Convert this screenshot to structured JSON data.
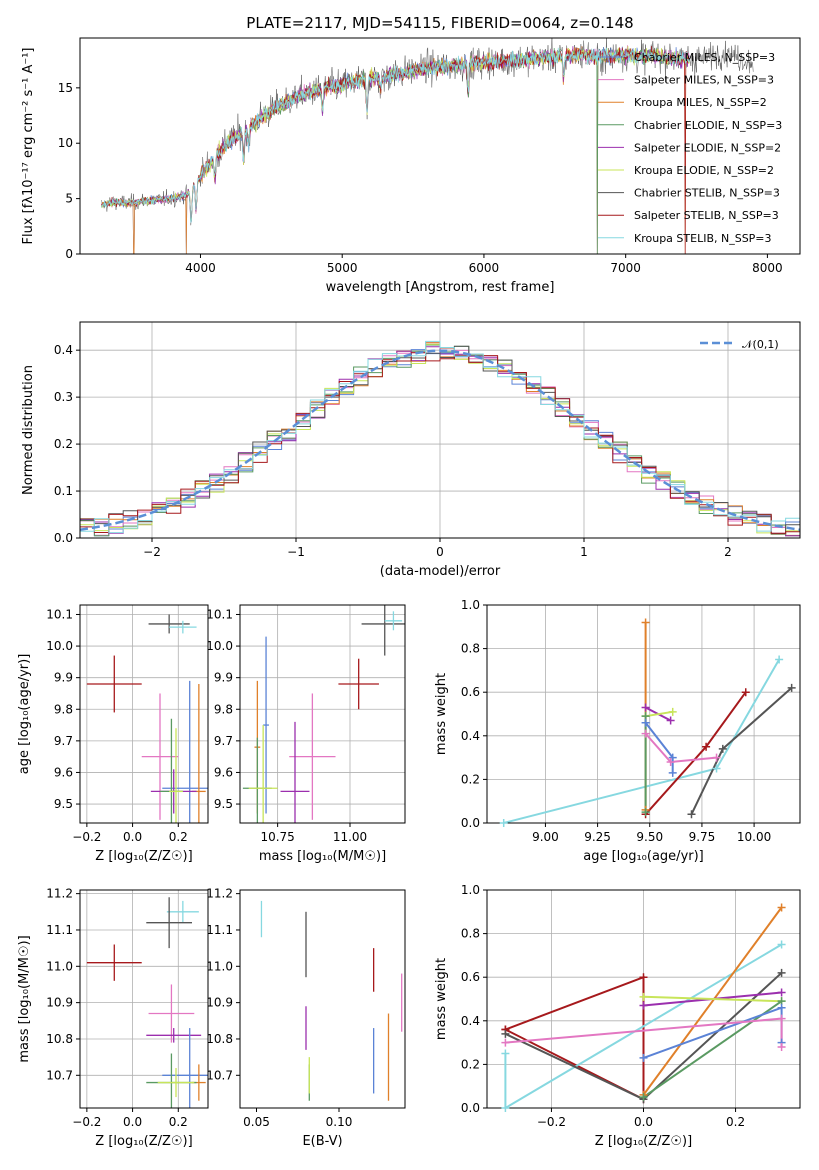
{
  "figure_title": "PLATE=2117, MJD=54115, FIBERID=0064, z=0.148",
  "colors": {
    "Chabrier MILES": "#5b83d6",
    "Salpeter MILES": "#e377c2",
    "Kroupa MILES": "#e0802a",
    "Chabrier ELODIE": "#5a9a62",
    "Salpeter ELODIE": "#9b2fae",
    "Kroupa ELODIE": "#c8e55a",
    "Chabrier STELIB": "#555555",
    "Salpeter STELIB": "#a6191c",
    "Kroupa STELIB": "#86d8e0"
  },
  "chart_data": [
    {
      "id": "spectrum",
      "type": "line",
      "xlabel": "wavelength [Angstrom, rest frame]",
      "ylabel": "Flux [fλ10⁻¹⁷ erg cm⁻² s⁻¹ A⁻¹]",
      "xlim": [
        3150,
        8230
      ],
      "ylim": [
        0,
        19.5
      ],
      "xticks": [
        4000,
        5000,
        6000,
        7000,
        8000
      ],
      "yticks": [
        0,
        5,
        10,
        15
      ],
      "grid": false,
      "legend_position": "upper right",
      "continuum": [
        [
          3300,
          4.4
        ],
        [
          3400,
          4.7
        ],
        [
          3500,
          4.6
        ],
        [
          3600,
          4.8
        ],
        [
          3700,
          4.9
        ],
        [
          3800,
          5.0
        ],
        [
          3900,
          5.3
        ],
        [
          4000,
          7.0
        ],
        [
          4100,
          8.8
        ],
        [
          4200,
          10.2
        ],
        [
          4300,
          11.0
        ],
        [
          4400,
          12.0
        ],
        [
          4500,
          13.0
        ],
        [
          4600,
          13.7
        ],
        [
          4700,
          14.3
        ],
        [
          4800,
          14.7
        ],
        [
          4900,
          15.1
        ],
        [
          5000,
          15.3
        ],
        [
          5100,
          15.6
        ],
        [
          5200,
          15.9
        ],
        [
          5300,
          16.0
        ],
        [
          5400,
          16.3
        ],
        [
          5500,
          16.6
        ],
        [
          5600,
          16.8
        ],
        [
          5700,
          16.9
        ],
        [
          5800,
          17.0
        ],
        [
          5900,
          17.2
        ],
        [
          6000,
          17.3
        ],
        [
          6100,
          17.4
        ],
        [
          6200,
          17.5
        ],
        [
          6300,
          17.6
        ],
        [
          6400,
          17.7
        ],
        [
          6500,
          17.8
        ],
        [
          6600,
          17.9
        ],
        [
          6700,
          18.0
        ],
        [
          6800,
          17.8
        ],
        [
          6900,
          17.9
        ],
        [
          7000,
          18.0
        ],
        [
          7100,
          17.8
        ],
        [
          7200,
          17.9
        ],
        [
          7300,
          17.7
        ],
        [
          7400,
          17.6
        ],
        [
          7500,
          17.6
        ]
      ],
      "observed_extension": [
        [
          7250,
          18.8
        ],
        [
          7400,
          18.3
        ],
        [
          7550,
          17.6
        ],
        [
          7700,
          18.2
        ],
        [
          7850,
          17.4
        ]
      ],
      "absorption_lines": [
        [
          3934,
          3.0
        ],
        [
          3969,
          2.5
        ],
        [
          4102,
          2.0
        ],
        [
          4304,
          2.5
        ],
        [
          4340,
          1.5
        ],
        [
          4861,
          2.0
        ],
        [
          5175,
          3.0
        ],
        [
          5270,
          1.2
        ],
        [
          5890,
          2.5
        ],
        [
          6563,
          2.0
        ]
      ],
      "dropouts": [
        {
          "series": "Chabrier MILES",
          "x": 3530
        },
        {
          "series": "Kroupa MILES",
          "x": 3530
        },
        {
          "series": "Chabrier MILES",
          "x": 3900
        },
        {
          "series": "Kroupa MILES",
          "x": 3900
        },
        {
          "series": "Chabrier MILES",
          "x": 6800
        },
        {
          "series": "Kroupa MILES",
          "x": 6800
        },
        {
          "series": "Chabrier ELODIE",
          "x": 6800
        },
        {
          "series": "Kroupa MILES",
          "x": 7420
        },
        {
          "series": "Salpeter STELIB",
          "x": 7420
        }
      ],
      "series": [
        {
          "name": "Chabrier MILES, N_SSP=3"
        },
        {
          "name": "Salpeter MILES, N_SSP=3"
        },
        {
          "name": "Kroupa MILES, N_SSP=2"
        },
        {
          "name": "Chabrier ELODIE, N_SSP=3"
        },
        {
          "name": "Salpeter ELODIE, N_SSP=2"
        },
        {
          "name": "Kroupa ELODIE, N_SSP=2"
        },
        {
          "name": "Chabrier STELIB, N_SSP=3"
        },
        {
          "name": "Salpeter STELIB, N_SSP=3"
        },
        {
          "name": "Kroupa STELIB, N_SSP=3"
        }
      ]
    },
    {
      "id": "residuals",
      "type": "histogram",
      "xlabel": "(data-model)/error",
      "ylabel": "Normed distribution",
      "xlim": [
        -2.5,
        2.5
      ],
      "ylim": [
        0,
        0.46
      ],
      "xticks": [
        -2,
        -1,
        0,
        1,
        2
      ],
      "yticks": [
        0.0,
        0.1,
        0.2,
        0.3,
        0.4
      ],
      "grid": true,
      "legend": "𝒩(0,1)",
      "legend_position": "upper right",
      "bin_width": 0.1
    },
    {
      "id": "age_vs_Z",
      "type": "errorbar",
      "xlabel": "Z [log₁₀(Z/Z☉)]",
      "ylabel": "age  [log₁₀(age/yr)]",
      "xlim": [
        -0.23,
        0.33
      ],
      "ylim": [
        9.44,
        10.13
      ],
      "xticks": [
        -0.2,
        0.0,
        0.2
      ],
      "yticks": [
        9.5,
        9.6,
        9.7,
        9.8,
        9.9,
        10.0,
        10.1
      ],
      "grid": true,
      "points": [
        {
          "series": "Chabrier STELIB",
          "x": 0.16,
          "y": 10.07,
          "xerr": 0.09,
          "yerr": 0.03
        },
        {
          "series": "Kroupa STELIB",
          "x": 0.22,
          "y": 10.06,
          "xerr": 0.06,
          "yerr": 0.02
        },
        {
          "series": "Salpeter STELIB",
          "x": -0.08,
          "y": 9.88,
          "xerr": 0.12,
          "yerr": 0.09
        },
        {
          "series": "Salpeter MILES",
          "x": 0.12,
          "y": 9.65,
          "xerr": 0.08,
          "yerr": 0.2
        },
        {
          "series": "Chabrier MILES",
          "x": 0.25,
          "y": 9.55,
          "xerr": 0.12,
          "yerr": 0.34
        },
        {
          "series": "Kroupa MILES",
          "x": 0.29,
          "y": 9.54,
          "xerr": 0.03,
          "yerr": 0.34
        },
        {
          "series": "Salpeter ELODIE",
          "x": 0.18,
          "y": 9.54,
          "xerr": 0.1,
          "yerr": 0.07
        },
        {
          "series": "Chabrier ELODIE",
          "x": 0.17,
          "y": 9.54,
          "xerr": 0.05,
          "yerr": 0.23
        },
        {
          "series": "Kroupa ELODIE",
          "x": 0.19,
          "y": 9.54,
          "xerr": 0.03,
          "yerr": 0.2
        }
      ]
    },
    {
      "id": "age_vs_mass",
      "type": "errorbar",
      "xlabel": "mass [log₁₀(M/M☉)]",
      "ylabel": "",
      "xlim": [
        10.62,
        11.19
      ],
      "ylim": [
        9.44,
        10.13
      ],
      "xticks": [
        10.75,
        11.0
      ],
      "yticks": [
        9.5,
        9.6,
        9.7,
        9.8,
        9.9,
        10.0,
        10.1
      ],
      "grid": true,
      "points": [
        {
          "series": "Chabrier STELIB",
          "x": 11.12,
          "y": 10.07,
          "xerr": 0.08,
          "yerr": 0.1
        },
        {
          "series": "Kroupa STELIB",
          "x": 11.15,
          "y": 10.08,
          "xerr": 0.03,
          "yerr": 0.03
        },
        {
          "series": "Salpeter STELIB",
          "x": 11.03,
          "y": 9.88,
          "xerr": 0.07,
          "yerr": 0.08
        },
        {
          "series": "Salpeter MILES",
          "x": 10.87,
          "y": 9.65,
          "xerr": 0.08,
          "yerr": 0.2
        },
        {
          "series": "Chabrier MILES",
          "x": 10.71,
          "y": 9.75,
          "xerr": 0.01,
          "yerr": 0.28
        },
        {
          "series": "Kroupa MILES",
          "x": 10.68,
          "y": 9.68,
          "xerr": 0.01,
          "yerr": 0.21
        },
        {
          "series": "Salpeter ELODIE",
          "x": 10.81,
          "y": 9.54,
          "xerr": 0.05,
          "yerr": 0.22
        },
        {
          "series": "Chabrier ELODIE",
          "x": 10.68,
          "y": 9.55,
          "xerr": 0.05,
          "yerr": 0.16
        },
        {
          "series": "Kroupa ELODIE",
          "x": 10.7,
          "y": 9.55,
          "xerr": 0.05,
          "yerr": 0.2
        }
      ]
    },
    {
      "id": "weight_vs_age",
      "type": "line",
      "xlabel": "age  [log₁₀(age/yr)]",
      "ylabel": "mass weight",
      "xlim": [
        8.72,
        10.22
      ],
      "ylim": [
        0,
        1.0
      ],
      "xticks": [
        9.0,
        9.25,
        9.5,
        9.75,
        10.0
      ],
      "yticks": [
        0.0,
        0.2,
        0.4,
        0.6,
        0.8,
        1.0
      ],
      "grid": true,
      "series": [
        {
          "series": "Kroupa STELIB",
          "x": [
            8.8,
            9.82,
            10.12
          ],
          "y": [
            0.0,
            0.25,
            0.75
          ]
        },
        {
          "series": "Chabrier STELIB",
          "x": [
            9.7,
            9.85,
            10.18
          ],
          "y": [
            0.04,
            0.34,
            0.62
          ]
        },
        {
          "series": "Salpeter STELIB",
          "x": [
            9.48,
            9.77,
            9.96
          ],
          "y": [
            0.04,
            0.35,
            0.6
          ]
        },
        {
          "series": "Kroupa MILES",
          "x": [
            9.48,
            9.48
          ],
          "y": [
            0.92,
            0.06
          ]
        },
        {
          "series": "Salpeter ELODIE",
          "x": [
            9.48,
            9.6
          ],
          "y": [
            0.53,
            0.47
          ]
        },
        {
          "series": "Kroupa ELODIE",
          "x": [
            9.48,
            9.61
          ],
          "y": [
            0.49,
            0.51
          ]
        },
        {
          "series": "Chabrier ELODIE",
          "x": [
            9.48,
            9.48
          ],
          "y": [
            0.49,
            0.05
          ]
        },
        {
          "series": "Chabrier MILES",
          "x": [
            9.48,
            9.61,
            9.61
          ],
          "y": [
            0.46,
            0.3,
            0.23
          ]
        },
        {
          "series": "Salpeter MILES",
          "x": [
            9.48,
            9.6,
            9.82
          ],
          "y": [
            0.41,
            0.28,
            0.3
          ]
        }
      ]
    },
    {
      "id": "mass_vs_Z",
      "type": "errorbar",
      "xlabel": "Z [log₁₀(Z/Z☉)]",
      "ylabel": "mass [log₁₀(M/M☉)]",
      "xlim": [
        -0.23,
        0.33
      ],
      "ylim": [
        10.61,
        11.21
      ],
      "xticks": [
        -0.2,
        0.0,
        0.2
      ],
      "yticks": [
        10.7,
        10.8,
        10.9,
        11.0,
        11.1,
        11.2
      ],
      "grid": true,
      "points": [
        {
          "series": "Kroupa STELIB",
          "x": 0.22,
          "y": 11.15,
          "xerr": 0.07,
          "yerr": 0.03
        },
        {
          "series": "Chabrier STELIB",
          "x": 0.16,
          "y": 11.12,
          "xerr": 0.1,
          "yerr": 0.07
        },
        {
          "series": "Salpeter STELIB",
          "x": -0.08,
          "y": 11.01,
          "xerr": 0.12,
          "yerr": 0.05
        },
        {
          "series": "Salpeter MILES",
          "x": 0.17,
          "y": 10.87,
          "xerr": 0.1,
          "yerr": 0.08
        },
        {
          "series": "Salpeter ELODIE",
          "x": 0.18,
          "y": 10.81,
          "xerr": 0.12,
          "yerr": 0.02
        },
        {
          "series": "Chabrier MILES",
          "x": 0.25,
          "y": 10.7,
          "xerr": 0.12,
          "yerr": 0.13
        },
        {
          "series": "Kroupa MILES",
          "x": 0.29,
          "y": 10.68,
          "xerr": 0.03,
          "yerr": 0.05
        },
        {
          "series": "Chabrier ELODIE",
          "x": 0.17,
          "y": 10.68,
          "xerr": 0.11,
          "yerr": 0.08
        },
        {
          "series": "Kroupa ELODIE",
          "x": 0.19,
          "y": 10.68,
          "xerr": 0.08,
          "yerr": 0.04
        }
      ]
    },
    {
      "id": "mass_vs_EBV",
      "type": "errorbar",
      "xlabel": "E(B-V)",
      "ylabel": "",
      "xlim": [
        0.04,
        0.14
      ],
      "ylim": [
        10.61,
        11.21
      ],
      "xticks": [
        0.05,
        0.1
      ],
      "yticks": [
        10.7,
        10.8,
        10.9,
        11.0,
        11.1,
        11.2
      ],
      "grid": false,
      "points": [
        {
          "series": "Kroupa STELIB",
          "x": 0.053,
          "y": 11.13,
          "xerr": 0.0,
          "yerr": 0.05
        },
        {
          "series": "Chabrier STELIB",
          "x": 0.08,
          "y": 11.06,
          "xerr": 0.0,
          "yerr": 0.09
        },
        {
          "series": "Salpeter STELIB",
          "x": 0.121,
          "y": 10.99,
          "xerr": 0.0,
          "yerr": 0.06
        },
        {
          "series": "Salpeter MILES",
          "x": 0.138,
          "y": 10.9,
          "xerr": 0.0,
          "yerr": 0.08
        },
        {
          "series": "Salpeter ELODIE",
          "x": 0.08,
          "y": 10.83,
          "xerr": 0.0,
          "yerr": 0.06
        },
        {
          "series": "Chabrier MILES",
          "x": 0.121,
          "y": 10.74,
          "xerr": 0.0,
          "yerr": 0.09
        },
        {
          "series": "Kroupa MILES",
          "x": 0.13,
          "y": 10.75,
          "xerr": 0.0,
          "yerr": 0.12
        },
        {
          "series": "Chabrier ELODIE",
          "x": 0.082,
          "y": 10.68,
          "xerr": 0.0,
          "yerr": 0.05
        },
        {
          "series": "Kroupa ELODIE",
          "x": 0.082,
          "y": 10.7,
          "xerr": 0.0,
          "yerr": 0.05
        }
      ]
    },
    {
      "id": "weight_vs_Z",
      "type": "line",
      "xlabel": "Z [log₁₀(Z/Z☉)]",
      "ylabel": "mass weight",
      "xlim": [
        -0.34,
        0.34
      ],
      "ylim": [
        0,
        1.0
      ],
      "xticks": [
        -0.2,
        0.0,
        0.2
      ],
      "yticks": [
        0.0,
        0.2,
        0.4,
        0.6,
        0.8,
        1.0
      ],
      "grid": true,
      "series": [
        {
          "series": "Salpeter STELIB",
          "x": [
            -0.3,
            0.0,
            0.0,
            -0.3
          ],
          "y": [
            0.36,
            0.6,
            0.04,
            0.36
          ]
        },
        {
          "series": "Kroupa STELIB",
          "x": [
            -0.3,
            -0.3,
            0.3
          ],
          "y": [
            0.25,
            0.0,
            0.75
          ]
        },
        {
          "series": "Chabrier STELIB",
          "x": [
            -0.3,
            0.0,
            0.3
          ],
          "y": [
            0.34,
            0.04,
            0.62
          ]
        },
        {
          "series": "Kroupa MILES",
          "x": [
            0.0,
            0.3
          ],
          "y": [
            0.06,
            0.92
          ]
        },
        {
          "series": "Salpeter ELODIE",
          "x": [
            0.0,
            0.3
          ],
          "y": [
            0.47,
            0.53
          ]
        },
        {
          "series": "Kroupa ELODIE",
          "x": [
            0.0,
            0.3
          ],
          "y": [
            0.51,
            0.49
          ]
        },
        {
          "series": "Chabrier ELODIE",
          "x": [
            0.0,
            0.3
          ],
          "y": [
            0.05,
            0.49
          ]
        },
        {
          "series": "Chabrier MILES",
          "x": [
            0.0,
            0.3,
            0.3
          ],
          "y": [
            0.23,
            0.46,
            0.3
          ]
        },
        {
          "series": "Salpeter MILES",
          "x": [
            -0.3,
            0.3,
            0.3
          ],
          "y": [
            0.3,
            0.41,
            0.28
          ]
        }
      ]
    }
  ]
}
